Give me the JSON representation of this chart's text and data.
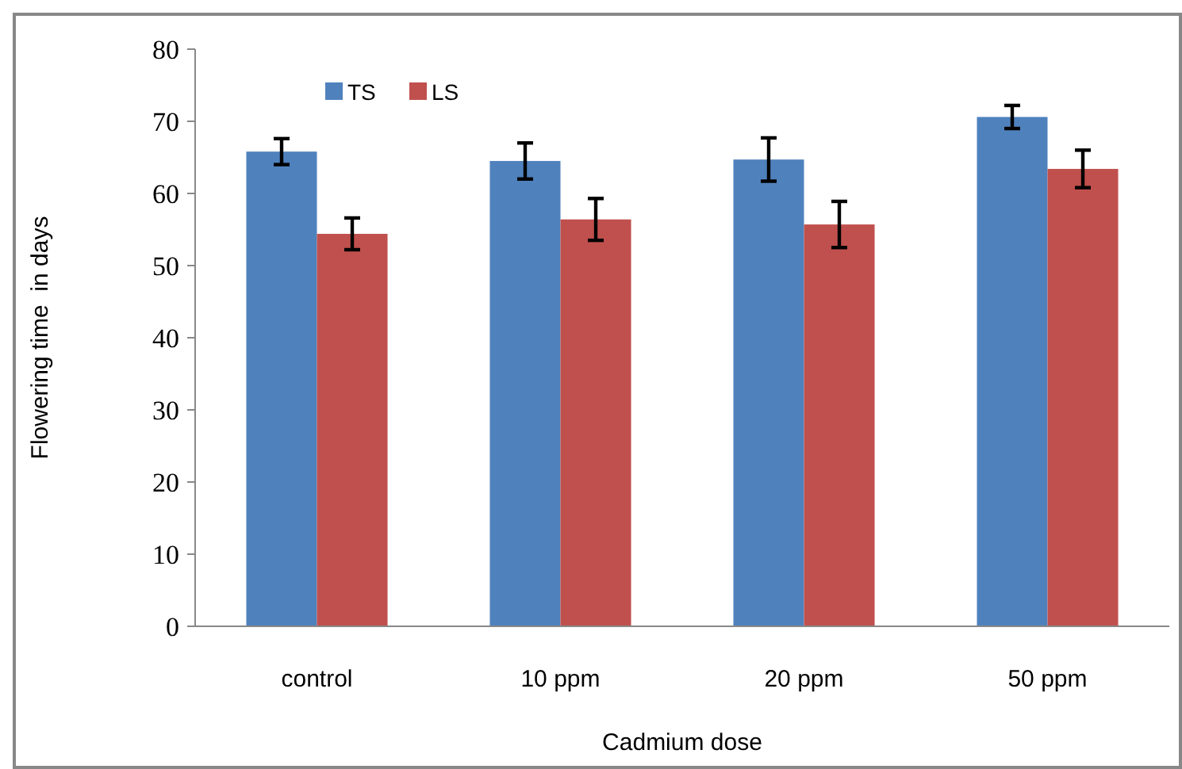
{
  "chart_data": {
    "type": "bar",
    "xlabel": "Cadmium dose",
    "ylabel": "Flowering time  in days",
    "categories": [
      "control",
      "10 ppm",
      "20 ppm",
      "50 ppm"
    ],
    "series": [
      {
        "name": "TS",
        "color": "#4f81bd",
        "values": [
          65.8,
          64.5,
          64.7,
          70.6
        ],
        "errors": [
          1.8,
          2.5,
          3,
          1.6
        ]
      },
      {
        "name": "LS",
        "color": "#c0504d",
        "values": [
          54.4,
          56.4,
          55.7,
          63.4
        ],
        "errors": [
          2.2,
          2.9,
          3.2,
          2.6
        ]
      }
    ],
    "ylim": [
      0,
      80
    ],
    "yticks": [
      0,
      10,
      20,
      30,
      40,
      50,
      60,
      70,
      80
    ],
    "grid": false,
    "legend": "top left"
  }
}
